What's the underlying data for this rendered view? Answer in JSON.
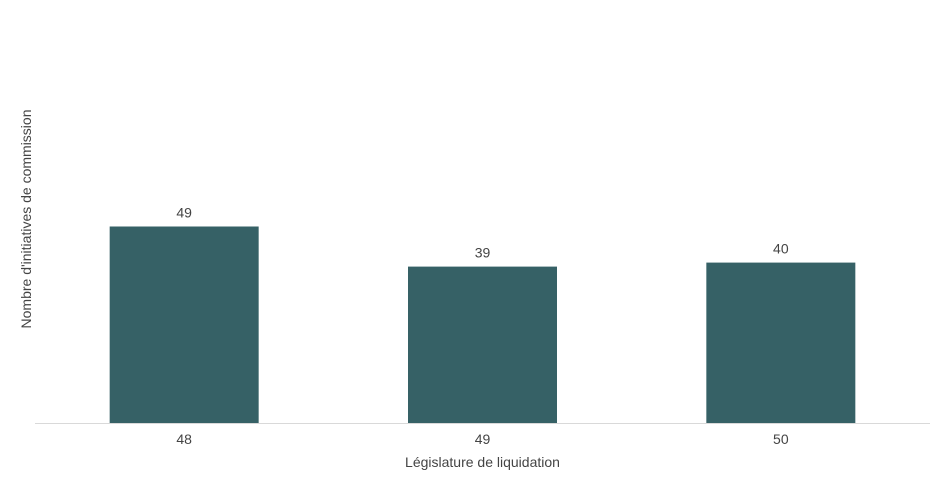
{
  "chart_data": {
    "type": "bar",
    "categories": [
      "48",
      "49",
      "50"
    ],
    "values": [
      49,
      39,
      40
    ],
    "data_labels": [
      "49",
      "39",
      "40"
    ],
    "xlabel": "Législature de liquidation",
    "ylabel": "Nombre d'initiatives de commission",
    "ylim": [
      0,
      98
    ],
    "grid": false,
    "legend": "none",
    "colors": {
      "bar": "#366166",
      "axis_line": "#d9d9d9",
      "text": "#444444"
    }
  }
}
